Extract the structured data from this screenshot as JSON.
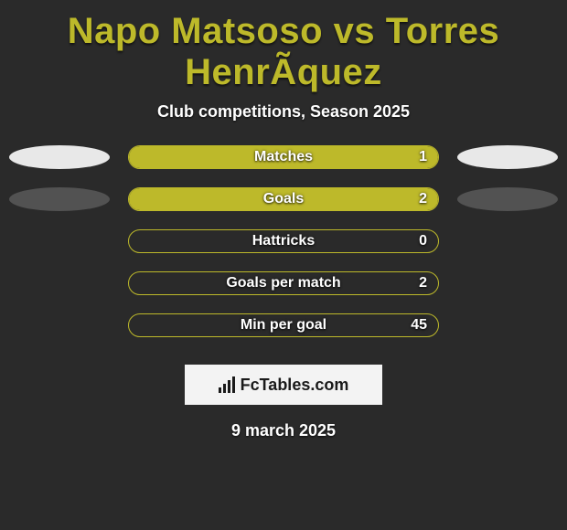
{
  "page": {
    "title": "Napo Matsoso vs Torres HenrÃ­quez",
    "subtitle": "Club competitions, Season 2025",
    "date": "9 march 2025",
    "background_color": "#2a2a2a",
    "accent_color": "#bdb92a",
    "ellipse_light": "#e8e8e8",
    "ellipse_dark": "#525252",
    "text_color": "#ffffff"
  },
  "branding": {
    "text": "FcTables.com"
  },
  "stats": [
    {
      "label": "Matches",
      "value": "1",
      "fill_pct": 100,
      "fill_color": "#bdb92a",
      "left_ellipse": "#e8e8e8",
      "right_ellipse": "#e8e8e8"
    },
    {
      "label": "Goals",
      "value": "2",
      "fill_pct": 100,
      "fill_color": "#bdb92a",
      "left_ellipse": "#525252",
      "right_ellipse": "#525252"
    },
    {
      "label": "Hattricks",
      "value": "0",
      "fill_pct": 0,
      "fill_color": "#bdb92a",
      "left_ellipse": null,
      "right_ellipse": null
    },
    {
      "label": "Goals per match",
      "value": "2",
      "fill_pct": 0,
      "fill_color": "#bdb92a",
      "left_ellipse": null,
      "right_ellipse": null
    },
    {
      "label": "Min per goal",
      "value": "45",
      "fill_pct": 0,
      "fill_color": "#bdb92a",
      "left_ellipse": null,
      "right_ellipse": null
    }
  ]
}
